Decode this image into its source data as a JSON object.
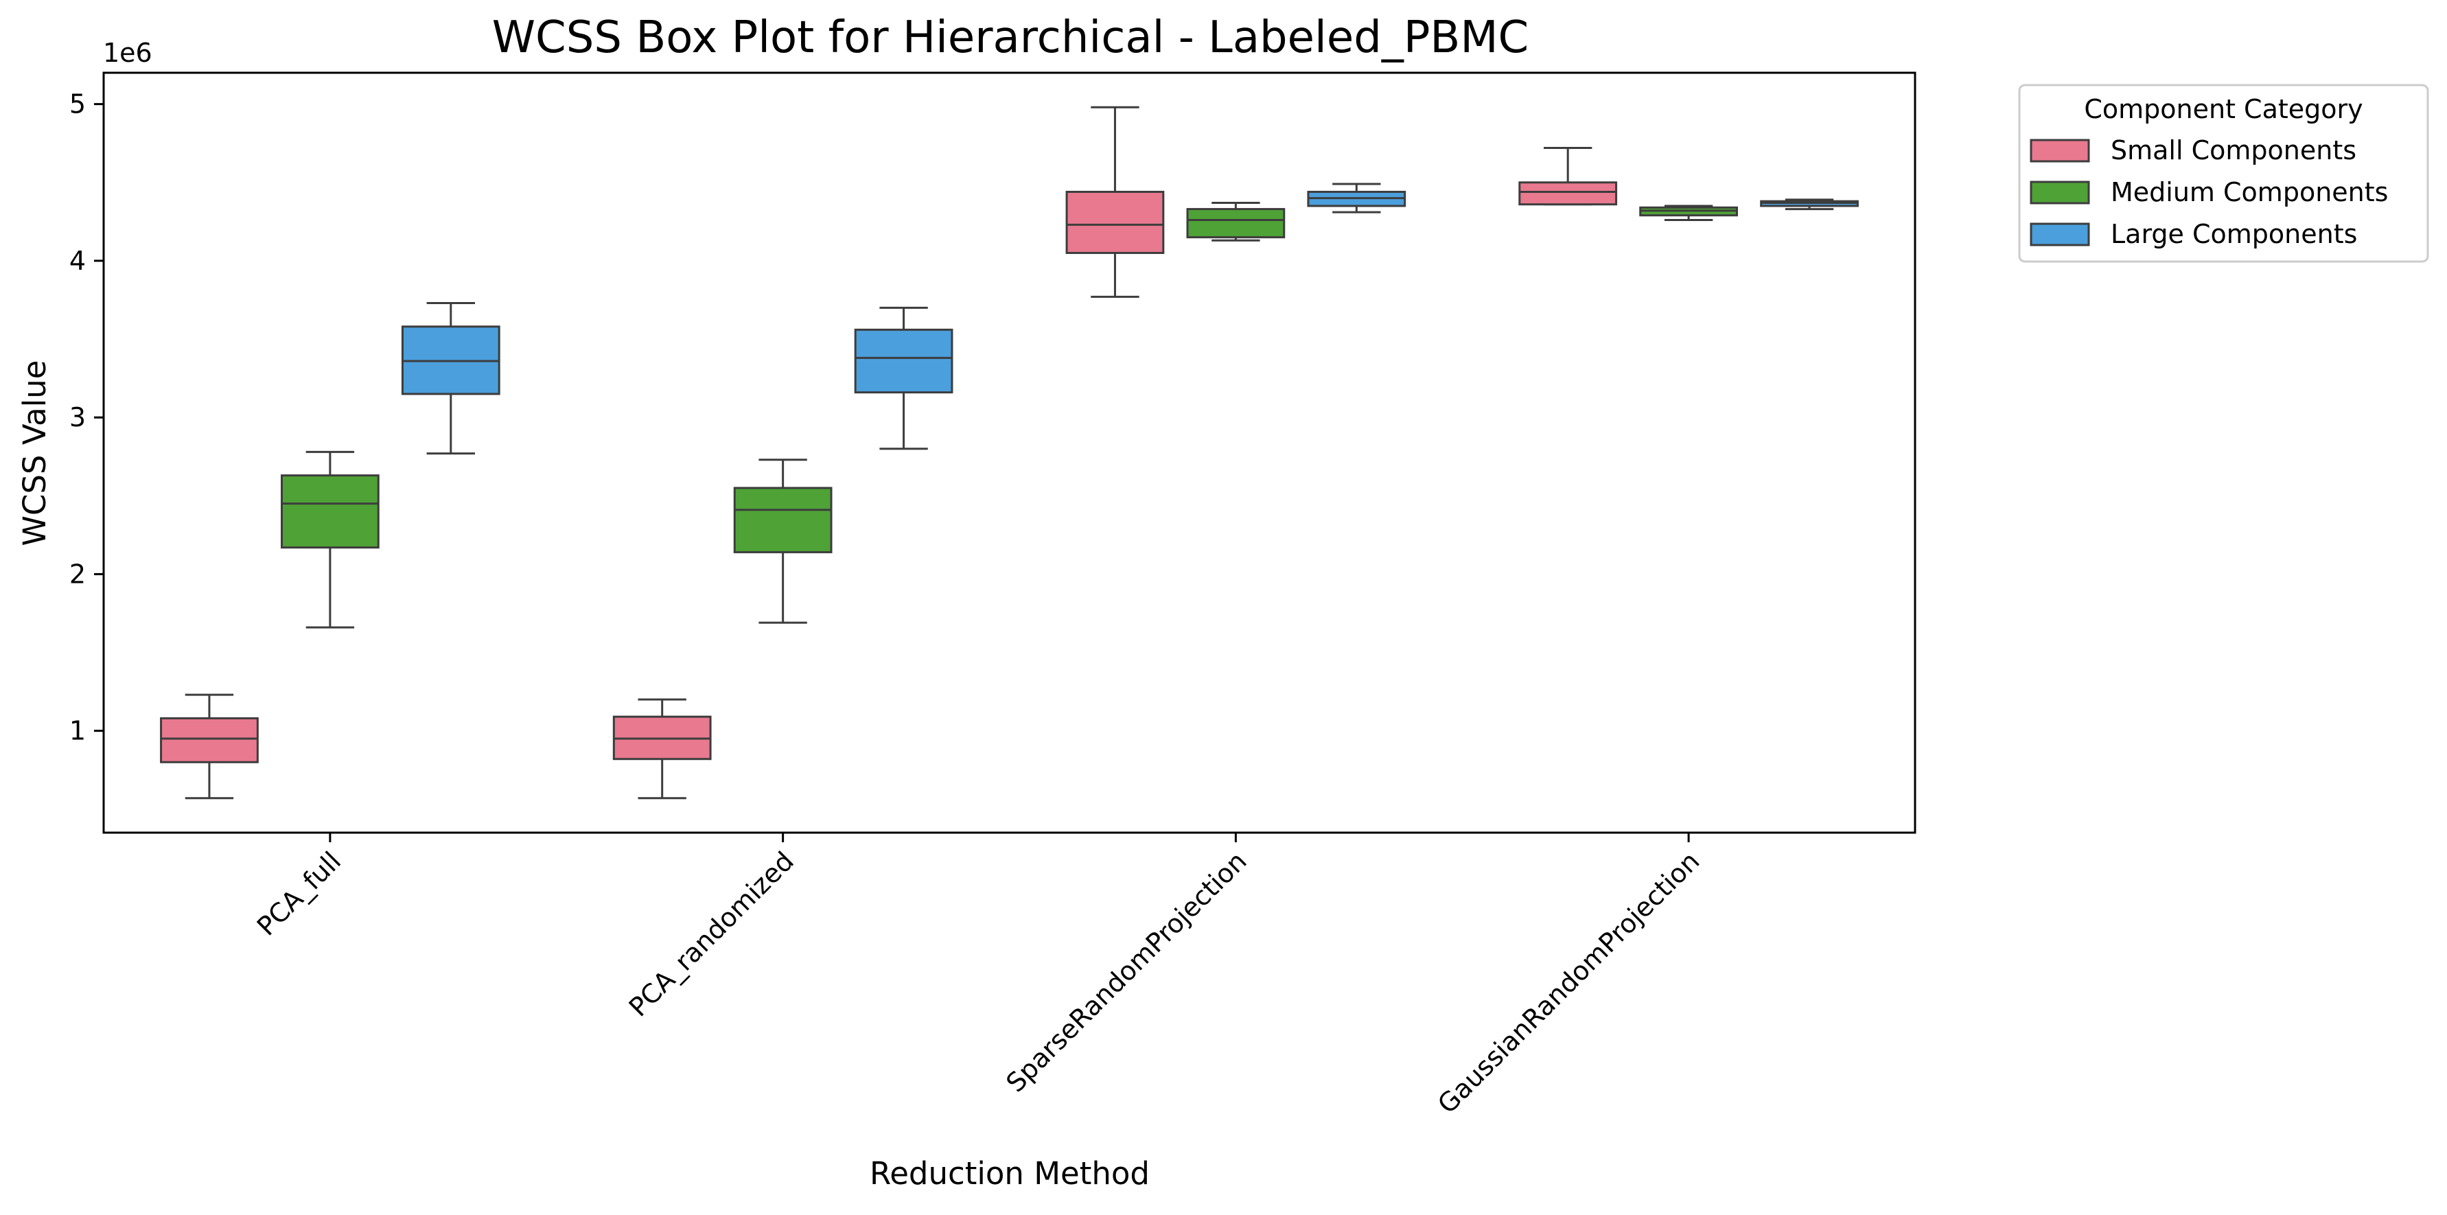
{
  "chart_data": {
    "type": "boxplot",
    "title": "WCSS Box Plot for Hierarchical - Labeled_PBMC",
    "xlabel": "Reduction Method",
    "ylabel": "WCSS Value",
    "y_offset_label": "1e6",
    "y_scale_multiplier": 1000000,
    "ylim": [
      0.35,
      5.2
    ],
    "yticks": [
      1,
      2,
      3,
      4,
      5
    ],
    "grid": false,
    "categories": [
      "PCA_full",
      "PCA_randomized",
      "SparseRandomProjection",
      "GaussianRandomProjection"
    ],
    "legend": {
      "title": "Component Category",
      "placement": "outside-top-right"
    },
    "series": [
      {
        "name": "Small Components",
        "color": "#e8798f",
        "boxes": [
          {
            "whisker_low": 0.57,
            "q1": 0.8,
            "median": 0.95,
            "q3": 1.08,
            "whisker_high": 1.23
          },
          {
            "whisker_low": 0.57,
            "q1": 0.82,
            "median": 0.95,
            "q3": 1.09,
            "whisker_high": 1.2
          },
          {
            "whisker_low": 3.77,
            "q1": 4.05,
            "median": 4.23,
            "q3": 4.44,
            "whisker_high": 4.98
          },
          {
            "whisker_low": 4.36,
            "q1": 4.36,
            "median": 4.44,
            "q3": 4.5,
            "whisker_high": 4.72
          }
        ]
      },
      {
        "name": "Medium Components",
        "color": "#4fa236",
        "boxes": [
          {
            "whisker_low": 1.66,
            "q1": 2.17,
            "median": 2.45,
            "q3": 2.63,
            "whisker_high": 2.78
          },
          {
            "whisker_low": 1.69,
            "q1": 2.14,
            "median": 2.41,
            "q3": 2.55,
            "whisker_high": 2.73
          },
          {
            "whisker_low": 4.13,
            "q1": 4.15,
            "median": 4.26,
            "q3": 4.33,
            "whisker_high": 4.37
          },
          {
            "whisker_low": 4.26,
            "q1": 4.29,
            "median": 4.32,
            "q3": 4.34,
            "whisker_high": 4.35
          }
        ]
      },
      {
        "name": "Large Components",
        "color": "#4b9fdc",
        "boxes": [
          {
            "whisker_low": 2.77,
            "q1": 3.15,
            "median": 3.36,
            "q3": 3.58,
            "whisker_high": 3.73
          },
          {
            "whisker_low": 2.8,
            "q1": 3.16,
            "median": 3.38,
            "q3": 3.56,
            "whisker_high": 3.7
          },
          {
            "whisker_low": 4.31,
            "q1": 4.35,
            "median": 4.4,
            "q3": 4.44,
            "whisker_high": 4.49
          },
          {
            "whisker_low": 4.33,
            "q1": 4.35,
            "median": 4.37,
            "q3": 4.38,
            "whisker_high": 4.39
          }
        ]
      }
    ]
  }
}
